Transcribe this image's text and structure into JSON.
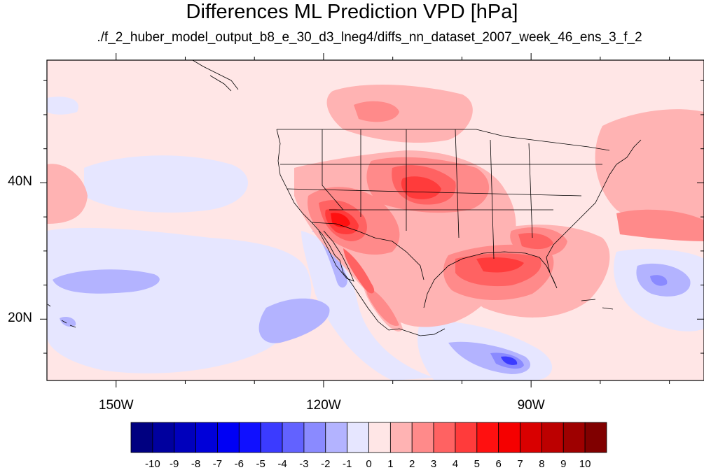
{
  "figure": {
    "title": "Differences ML Prediction VPD [hPa]",
    "subtitle": "./f_2_huber_model_output_b8_e_30_d3_lneg4/diffs_nn_dataset_2007_week_46_ens_3_f_2"
  },
  "map": {
    "lon_range": [
      -160,
      -65
    ],
    "lat_range": [
      11,
      58
    ],
    "lon_ticks": [
      {
        "value": -150,
        "label": "150W"
      },
      {
        "value": -120,
        "label": "120W"
      },
      {
        "value": -90,
        "label": "90W"
      }
    ],
    "lat_ticks": [
      {
        "value": 40,
        "label": "40N"
      },
      {
        "value": 20,
        "label": "20N"
      }
    ],
    "background_value": 0.5
  },
  "colorbar": {
    "labels": [
      "-10",
      "-9",
      "-8",
      "-7",
      "-6",
      "-5",
      "-4",
      "-3",
      "-2",
      "-1",
      "0",
      "1",
      "2",
      "3",
      "4",
      "5",
      "6",
      "7",
      "8",
      "9",
      "10"
    ],
    "colors": [
      "#000080",
      "#00009e",
      "#0000bc",
      "#0000d9",
      "#0000f5",
      "#1010ff",
      "#3b3bff",
      "#6262ff",
      "#8a8aff",
      "#b3b3ff",
      "#e6e6ff",
      "#ffe6e6",
      "#ffb3b3",
      "#ff8a8a",
      "#ff6262",
      "#ff3b3b",
      "#ff1010",
      "#f50000",
      "#d90000",
      "#bc0000",
      "#9e0000",
      "#800000"
    ]
  }
}
